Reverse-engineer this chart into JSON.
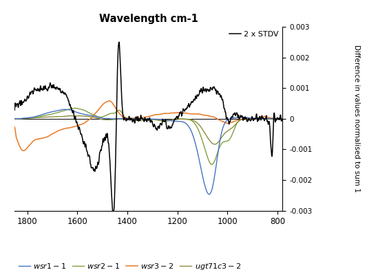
{
  "title": "Wavelength cm-1",
  "ylabel": "Difference in values normalised to sum 1",
  "xlim": [
    1850,
    780
  ],
  "ylim": [
    -0.003,
    0.003
  ],
  "yticks": [
    -0.003,
    -0.002,
    -0.001,
    0,
    0.001,
    0.002,
    0.003
  ],
  "xticks": [
    1800,
    1600,
    1400,
    1200,
    1000,
    800
  ],
  "colors": {
    "wsr1-1": "#4472C4",
    "wsr2-1": "#7F9F3F",
    "wsr3-2": "#E87722",
    "ugt71c3-2": "#8B8B3A",
    "stdv": "#000000"
  },
  "legend_label": "2 x STDV",
  "background_color": "#ffffff"
}
